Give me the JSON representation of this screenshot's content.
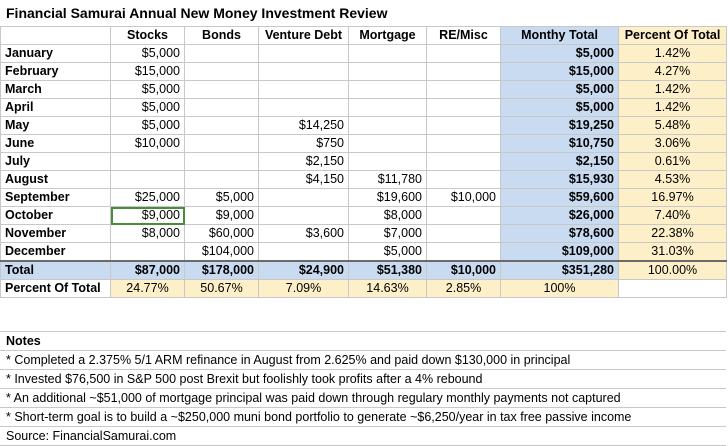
{
  "title": "Financial Samurai Annual New Money Investment Review",
  "columns": [
    "Stocks",
    "Bonds",
    "Venture Debt",
    "Mortgage",
    "RE/Misc",
    "Monthy Total",
    "Percent Of Total"
  ],
  "rows": [
    {
      "label": "January",
      "stocks": "$5,000",
      "bonds": "",
      "venture": "",
      "mortgage": "",
      "re": "",
      "total": "$5,000",
      "pct": "1.42%"
    },
    {
      "label": "February",
      "stocks": "$15,000",
      "bonds": "",
      "venture": "",
      "mortgage": "",
      "re": "",
      "total": "$15,000",
      "pct": "4.27%"
    },
    {
      "label": "March",
      "stocks": "$5,000",
      "bonds": "",
      "venture": "",
      "mortgage": "",
      "re": "",
      "total": "$5,000",
      "pct": "1.42%"
    },
    {
      "label": "April",
      "stocks": "$5,000",
      "bonds": "",
      "venture": "",
      "mortgage": "",
      "re": "",
      "total": "$5,000",
      "pct": "1.42%"
    },
    {
      "label": "May",
      "stocks": "$5,000",
      "bonds": "",
      "venture": "$14,250",
      "mortgage": "",
      "re": "",
      "total": "$19,250",
      "pct": "5.48%"
    },
    {
      "label": "June",
      "stocks": "$10,000",
      "bonds": "",
      "venture": "$750",
      "mortgage": "",
      "re": "",
      "total": "$10,750",
      "pct": "3.06%"
    },
    {
      "label": "July",
      "stocks": "",
      "bonds": "",
      "venture": "$2,150",
      "mortgage": "",
      "re": "",
      "total": "$2,150",
      "pct": "0.61%"
    },
    {
      "label": "August",
      "stocks": "",
      "bonds": "",
      "venture": "$4,150",
      "mortgage": "$11,780",
      "re": "",
      "total": "$15,930",
      "pct": "4.53%"
    },
    {
      "label": "September",
      "stocks": "$25,000",
      "bonds": "$5,000",
      "venture": "",
      "mortgage": "$19,600",
      "re": "$10,000",
      "total": "$59,600",
      "pct": "16.97%"
    },
    {
      "label": "October",
      "stocks": "$9,000",
      "bonds": "$9,000",
      "venture": "",
      "mortgage": "$8,000",
      "re": "",
      "total": "$26,000",
      "pct": "7.40%"
    },
    {
      "label": "November",
      "stocks": "$8,000",
      "bonds": "$60,000",
      "venture": "$3,600",
      "mortgage": "$7,000",
      "re": "",
      "total": "$78,600",
      "pct": "22.38%"
    },
    {
      "label": "December",
      "stocks": "",
      "bonds": "$104,000",
      "venture": "",
      "mortgage": "$5,000",
      "re": "",
      "total": "$109,000",
      "pct": "31.03%"
    }
  ],
  "total_row": {
    "label": "Total",
    "stocks": "$87,000",
    "bonds": "$178,000",
    "venture": "$24,900",
    "mortgage": "$51,380",
    "re": "$10,000",
    "total": "$351,280",
    "pct": "100.00%"
  },
  "pct_row": {
    "label": "Percent Of Total",
    "stocks": "24.77%",
    "bonds": "50.67%",
    "venture": "7.09%",
    "mortgage": "14.63%",
    "re": "2.85%",
    "total": "100%"
  },
  "notes": {
    "heading": "Notes",
    "items": [
      "* Completed a 2.375% 5/1 ARM refinance in August from 2.625% and paid down $130,000 in principal",
      "* Invested $76,500 in S&P 500 post Brexit but foolishly took profits after a 4% rebound",
      "* An additional ~$51,000 of mortgage principal was paid down through regulary monthly payments not captured",
      "* Short-term goal is to build a ~$250,000 muni bond portfolio to generate ~$6,250/year in tax free passive income"
    ],
    "source": "Source: FinancialSamurai.com"
  },
  "colors": {
    "total_fill": "#c9dbf1",
    "percent_fill": "#fdf0c9",
    "selected_cell": "#4c8b3a"
  }
}
